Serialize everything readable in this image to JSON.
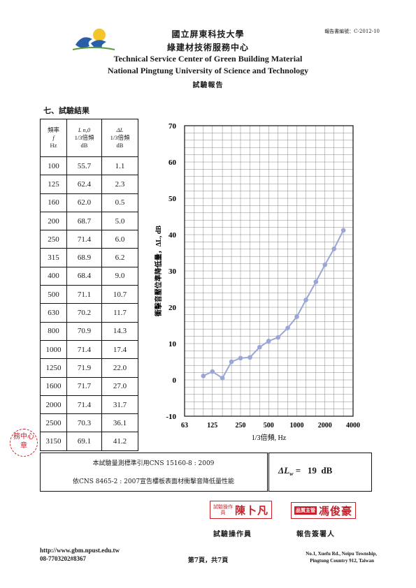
{
  "header": {
    "report_no": "報告書編號：C-2012-10",
    "title_cn_1": "國立屏東科技大學",
    "title_cn_2": "綠建材技術服務中心",
    "title_en_1": "Technical Service Center of Green Building Material",
    "title_en_2": "National Pingtung University of Science and Technology",
    "title_cn_3": "試驗報告",
    "logo_icon": "university-logo-icon"
  },
  "section_title": "七、試驗結果",
  "table": {
    "headers": [
      [
        "頻率",
        "f",
        "Hz"
      ],
      [
        "L n,0",
        "1/3倍頻",
        "dB"
      ],
      [
        "ΔL",
        "1/3倍頻",
        "dB"
      ]
    ],
    "rows": [
      [
        "100",
        "55.7",
        "1.1"
      ],
      [
        "125",
        "62.4",
        "2.3"
      ],
      [
        "160",
        "62.0",
        "0.5"
      ],
      [
        "200",
        "68.7",
        "5.0"
      ],
      [
        "250",
        "71.4",
        "6.0"
      ],
      [
        "315",
        "68.9",
        "6.2"
      ],
      [
        "400",
        "68.4",
        "9.0"
      ],
      [
        "500",
        "71.1",
        "10.7"
      ],
      [
        "630",
        "70.2",
        "11.7"
      ],
      [
        "800",
        "70.9",
        "14.3"
      ],
      [
        "1000",
        "71.4",
        "17.4"
      ],
      [
        "1250",
        "71.9",
        "22.0"
      ],
      [
        "1600",
        "71.7",
        "27.0"
      ],
      [
        "2000",
        "71.4",
        "31.7"
      ],
      [
        "2500",
        "70.3",
        "36.1"
      ],
      [
        "3150",
        "69.1",
        "41.2"
      ]
    ]
  },
  "chart_data": {
    "type": "line",
    "x": [
      100,
      125,
      160,
      200,
      250,
      315,
      400,
      500,
      630,
      800,
      1000,
      1250,
      1600,
      2000,
      2500,
      3150
    ],
    "y": [
      1.1,
      2.3,
      0.5,
      5.0,
      6.0,
      6.2,
      9.0,
      10.7,
      11.7,
      14.3,
      17.4,
      22.0,
      27.0,
      31.7,
      36.1,
      41.2
    ],
    "xscale": "log",
    "xlim": [
      63,
      4000
    ],
    "ylim": [
      -10,
      70
    ],
    "xticks": [
      "63",
      "125",
      "250",
      "500",
      "1000",
      "2000",
      "4000"
    ],
    "yticks": [
      "-10",
      "0",
      "10",
      "20",
      "30",
      "40",
      "50",
      "60",
      "70"
    ],
    "xlabel": "1/3倍頻, Hz",
    "ylabel": "衝擊音壓位準降低量，ΔL, dB",
    "grid": true,
    "line_color": "#9aa6d6"
  },
  "result": {
    "standard_line1": "本試驗量測標準引用CNS 15160-8 : 2009",
    "standard_line2": "依CNS 8465-2 : 2007宣告樓板表面材衝擊音降低量性能",
    "dlw_symbol": "ΔL",
    "dlw_sub": "w",
    "dlw_value": "=   19  dB"
  },
  "stamps": {
    "operator_small": "試驗操作員",
    "operator_name": "陳卜凡",
    "signer_small": "品質主管",
    "signer_name": "馮俊豪",
    "side_seal": "務中心章"
  },
  "labels": {
    "operator": "試驗操作員",
    "signer": "報告簽署人"
  },
  "footer": {
    "url": "http://www.gbm.npust.edu.tw",
    "phone": "08-7703202#8367",
    "page": "第7頁，共7頁",
    "addr1": "No.1, Xuefu Rd., Neipu Township,",
    "addr2": "Pingtung Country 912, Taiwan"
  }
}
